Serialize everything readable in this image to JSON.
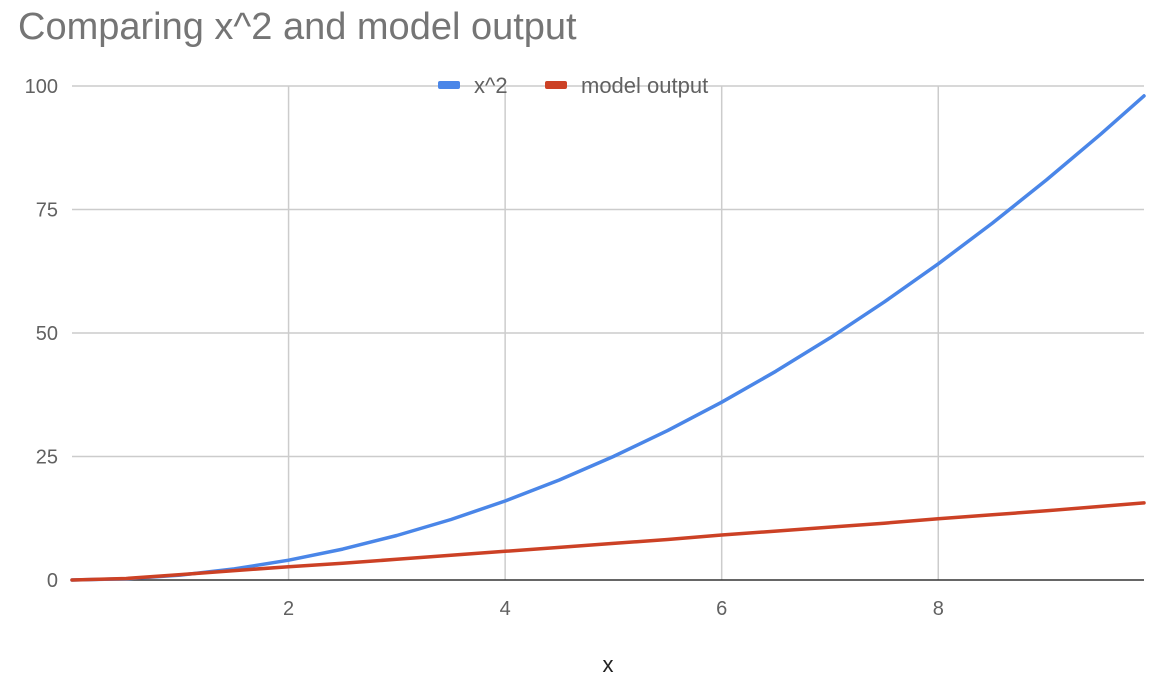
{
  "chart_data": {
    "type": "line",
    "title": "Comparing x^2 and model output",
    "xlabel": "x",
    "ylabel": "",
    "xlim": [
      0,
      9.9
    ],
    "ylim": [
      0,
      100
    ],
    "x_ticks": [
      2,
      4,
      6,
      8
    ],
    "y_ticks": [
      0,
      25,
      50,
      75,
      100
    ],
    "grid": true,
    "legend_position": "top",
    "x": [
      0,
      0.5,
      1,
      1.5,
      2,
      2.5,
      3,
      3.5,
      4,
      4.5,
      5,
      5.5,
      6,
      6.5,
      7,
      7.5,
      8,
      8.5,
      9,
      9.5,
      9.9
    ],
    "series": [
      {
        "name": "x^2",
        "color": "#4a86e8",
        "values": [
          0,
          0.25,
          1,
          2.25,
          4,
          6.25,
          9,
          12.25,
          16,
          20.25,
          25,
          30.25,
          36,
          42.25,
          49,
          56.25,
          64,
          72.25,
          81,
          90.25,
          98
        ]
      },
      {
        "name": "model output",
        "color": "#cc4125",
        "values": [
          0,
          0.3,
          1.1,
          1.9,
          2.7,
          3.4,
          4.2,
          5.0,
          5.8,
          6.6,
          7.4,
          8.2,
          9.1,
          9.9,
          10.7,
          11.5,
          12.4,
          13.2,
          14.0,
          14.9,
          15.6
        ]
      }
    ]
  }
}
